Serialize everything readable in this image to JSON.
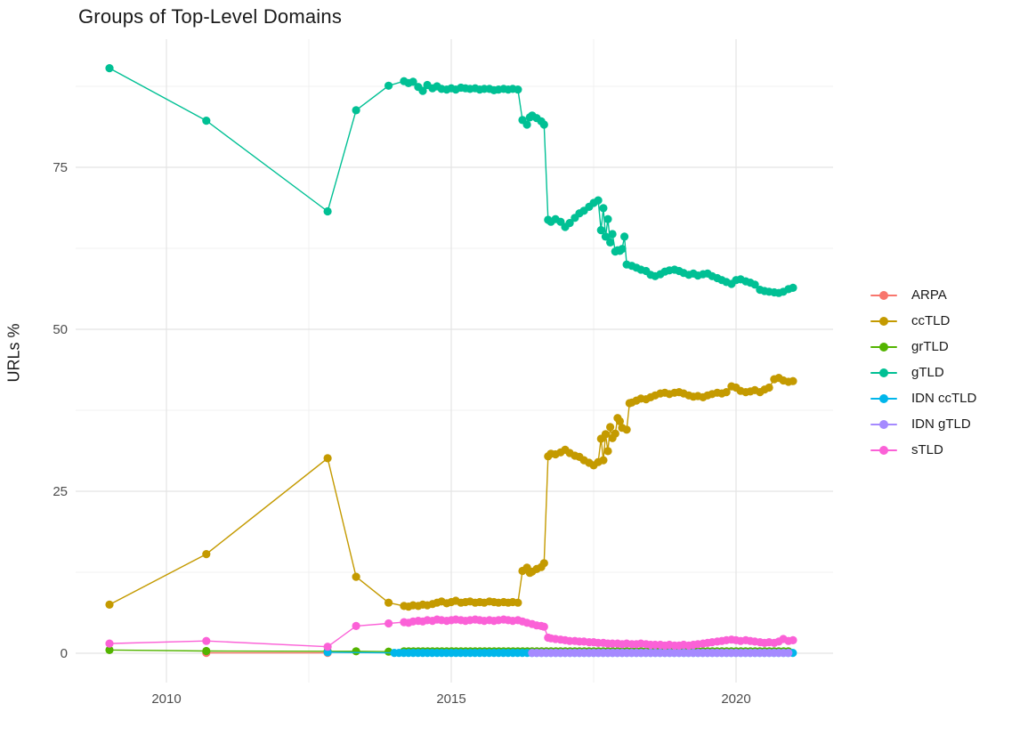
{
  "chart_data": {
    "type": "line",
    "title": "Groups of Top-Level Domains",
    "xlabel": "",
    "ylabel": "URLs %",
    "x_ticks": [
      2010,
      2015,
      2020
    ],
    "x_minor": [
      2012.5,
      2017.5
    ],
    "y_ticks": [
      0,
      25,
      50,
      75
    ],
    "y_minor": [
      12.5,
      37.5,
      62.5,
      87.5
    ],
    "xlim": [
      2008.4,
      2021.6
    ],
    "ylim": [
      -0.7,
      94.8
    ],
    "grid": "on",
    "legend_position": "right",
    "colors": {
      "major_grid": "#e4e4e4",
      "minor_grid": "#f0f0f0",
      "tick_text": "#4d4d4d",
      "text": "#1a1a1a",
      "background": "#ffffff"
    },
    "series": [
      {
        "name": "ARPA",
        "color": "#F8766D",
        "points": [
          [
            2010.7,
            0.05
          ],
          [
            2012.83,
            0.05
          ]
        ]
      },
      {
        "name": "ccTLD",
        "color": "#C49A00",
        "points": [
          [
            2009.0,
            7.5
          ],
          [
            2010.7,
            15.3
          ],
          [
            2012.83,
            30.1
          ],
          [
            2013.33,
            11.8
          ],
          [
            2013.9,
            7.8
          ],
          [
            2014.17,
            7.3
          ],
          [
            2014.25,
            7.2
          ],
          [
            2014.33,
            7.4
          ],
          [
            2014.42,
            7.3
          ],
          [
            2014.5,
            7.5
          ],
          [
            2014.58,
            7.4
          ],
          [
            2014.67,
            7.6
          ],
          [
            2014.75,
            7.8
          ],
          [
            2014.83,
            8.0
          ],
          [
            2014.92,
            7.7
          ],
          [
            2015.0,
            7.9
          ],
          [
            2015.08,
            8.1
          ],
          [
            2015.17,
            7.8
          ],
          [
            2015.25,
            7.9
          ],
          [
            2015.33,
            8.0
          ],
          [
            2015.42,
            7.8
          ],
          [
            2015.5,
            7.9
          ],
          [
            2015.58,
            7.8
          ],
          [
            2015.67,
            8.0
          ],
          [
            2015.75,
            7.9
          ],
          [
            2015.83,
            7.8
          ],
          [
            2015.92,
            7.9
          ],
          [
            2016.0,
            7.8
          ],
          [
            2016.08,
            7.9
          ],
          [
            2016.17,
            7.8
          ],
          [
            2016.25,
            12.7
          ],
          [
            2016.33,
            13.2
          ],
          [
            2016.38,
            12.4
          ],
          [
            2016.42,
            12.6
          ],
          [
            2016.5,
            13.0
          ],
          [
            2016.58,
            13.3
          ],
          [
            2016.63,
            13.9
          ],
          [
            2016.7,
            30.4
          ],
          [
            2016.75,
            30.8
          ],
          [
            2016.83,
            30.7
          ],
          [
            2016.92,
            31.0
          ],
          [
            2017.0,
            31.4
          ],
          [
            2017.08,
            30.9
          ],
          [
            2017.17,
            30.5
          ],
          [
            2017.25,
            30.3
          ],
          [
            2017.33,
            29.8
          ],
          [
            2017.42,
            29.4
          ],
          [
            2017.5,
            29.0
          ],
          [
            2017.58,
            29.5
          ],
          [
            2017.63,
            33.1
          ],
          [
            2017.67,
            29.8
          ],
          [
            2017.71,
            33.8
          ],
          [
            2017.75,
            31.2
          ],
          [
            2017.79,
            34.9
          ],
          [
            2017.83,
            33.2
          ],
          [
            2017.88,
            33.9
          ],
          [
            2017.92,
            36.3
          ],
          [
            2017.96,
            35.8
          ],
          [
            2018.0,
            34.8
          ],
          [
            2018.08,
            34.5
          ],
          [
            2018.13,
            38.6
          ],
          [
            2018.17,
            38.7
          ],
          [
            2018.25,
            39.0
          ],
          [
            2018.33,
            39.3
          ],
          [
            2018.42,
            39.2
          ],
          [
            2018.5,
            39.5
          ],
          [
            2018.58,
            39.8
          ],
          [
            2018.67,
            40.1
          ],
          [
            2018.75,
            40.2
          ],
          [
            2018.83,
            40.0
          ],
          [
            2018.92,
            40.2
          ],
          [
            2019.0,
            40.3
          ],
          [
            2019.08,
            40.1
          ],
          [
            2019.17,
            39.8
          ],
          [
            2019.25,
            39.6
          ],
          [
            2019.33,
            39.7
          ],
          [
            2019.42,
            39.5
          ],
          [
            2019.5,
            39.8
          ],
          [
            2019.58,
            40.0
          ],
          [
            2019.67,
            40.2
          ],
          [
            2019.75,
            40.1
          ],
          [
            2019.83,
            40.3
          ],
          [
            2019.92,
            41.2
          ],
          [
            2020.0,
            41.0
          ],
          [
            2020.08,
            40.5
          ],
          [
            2020.17,
            40.3
          ],
          [
            2020.25,
            40.4
          ],
          [
            2020.33,
            40.6
          ],
          [
            2020.42,
            40.3
          ],
          [
            2020.5,
            40.7
          ],
          [
            2020.58,
            41.0
          ],
          [
            2020.67,
            42.3
          ],
          [
            2020.75,
            42.5
          ],
          [
            2020.83,
            42.1
          ],
          [
            2020.92,
            41.9
          ],
          [
            2021.0,
            42.0
          ]
        ]
      },
      {
        "name": "grTLD",
        "color": "#53B400",
        "points": [
          [
            2009.0,
            0.5
          ],
          [
            2010.7,
            0.35
          ],
          [
            2012.83,
            0.3
          ],
          [
            2013.33,
            0.3
          ],
          [
            2013.9,
            0.25
          ]
        ],
        "spans": [
          {
            "from": 2014.17,
            "to": 2021.0,
            "step": 0.0833,
            "value": 0.3
          }
        ]
      },
      {
        "name": "gTLD",
        "color": "#00C094",
        "points": [
          [
            2009.0,
            90.3
          ],
          [
            2010.7,
            82.2
          ],
          [
            2012.83,
            68.2
          ],
          [
            2013.33,
            83.8
          ],
          [
            2013.9,
            87.6
          ],
          [
            2014.17,
            88.3
          ],
          [
            2014.25,
            88.0
          ],
          [
            2014.33,
            88.2
          ],
          [
            2014.42,
            87.4
          ],
          [
            2014.5,
            86.8
          ],
          [
            2014.58,
            87.7
          ],
          [
            2014.67,
            87.2
          ],
          [
            2014.75,
            87.5
          ],
          [
            2014.83,
            87.1
          ],
          [
            2014.92,
            87.0
          ],
          [
            2015.0,
            87.2
          ],
          [
            2015.08,
            87.0
          ],
          [
            2015.17,
            87.3
          ],
          [
            2015.25,
            87.2
          ],
          [
            2015.33,
            87.1
          ],
          [
            2015.42,
            87.2
          ],
          [
            2015.5,
            87.0
          ],
          [
            2015.58,
            87.1
          ],
          [
            2015.67,
            87.1
          ],
          [
            2015.75,
            86.9
          ],
          [
            2015.83,
            87.0
          ],
          [
            2015.92,
            87.1
          ],
          [
            2016.0,
            87.0
          ],
          [
            2016.08,
            87.1
          ],
          [
            2016.17,
            87.0
          ],
          [
            2016.25,
            82.3
          ],
          [
            2016.33,
            81.6
          ],
          [
            2016.38,
            82.7
          ],
          [
            2016.42,
            83.0
          ],
          [
            2016.5,
            82.6
          ],
          [
            2016.58,
            82.1
          ],
          [
            2016.63,
            81.6
          ],
          [
            2016.7,
            66.9
          ],
          [
            2016.75,
            66.6
          ],
          [
            2016.83,
            67.0
          ],
          [
            2016.92,
            66.6
          ],
          [
            2017.0,
            65.8
          ],
          [
            2017.08,
            66.4
          ],
          [
            2017.17,
            67.2
          ],
          [
            2017.25,
            67.9
          ],
          [
            2017.33,
            68.3
          ],
          [
            2017.42,
            68.9
          ],
          [
            2017.5,
            69.5
          ],
          [
            2017.58,
            69.9
          ],
          [
            2017.63,
            65.3
          ],
          [
            2017.67,
            68.7
          ],
          [
            2017.71,
            64.3
          ],
          [
            2017.75,
            67.0
          ],
          [
            2017.79,
            63.4
          ],
          [
            2017.83,
            64.7
          ],
          [
            2017.88,
            62.0
          ],
          [
            2017.92,
            62.2
          ],
          [
            2017.96,
            62.1
          ],
          [
            2018.0,
            62.4
          ],
          [
            2018.04,
            64.3
          ],
          [
            2018.08,
            60.0
          ],
          [
            2018.17,
            59.8
          ],
          [
            2018.25,
            59.5
          ],
          [
            2018.33,
            59.2
          ],
          [
            2018.42,
            59.0
          ],
          [
            2018.5,
            58.4
          ],
          [
            2018.58,
            58.2
          ],
          [
            2018.67,
            58.5
          ],
          [
            2018.75,
            58.9
          ],
          [
            2018.83,
            59.1
          ],
          [
            2018.92,
            59.2
          ],
          [
            2019.0,
            59.0
          ],
          [
            2019.08,
            58.7
          ],
          [
            2019.17,
            58.4
          ],
          [
            2019.25,
            58.6
          ],
          [
            2019.33,
            58.3
          ],
          [
            2019.42,
            58.5
          ],
          [
            2019.5,
            58.6
          ],
          [
            2019.58,
            58.2
          ],
          [
            2019.67,
            57.9
          ],
          [
            2019.75,
            57.6
          ],
          [
            2019.83,
            57.3
          ],
          [
            2019.92,
            57.0
          ],
          [
            2020.0,
            57.6
          ],
          [
            2020.08,
            57.7
          ],
          [
            2020.17,
            57.4
          ],
          [
            2020.25,
            57.2
          ],
          [
            2020.33,
            56.9
          ],
          [
            2020.42,
            56.1
          ],
          [
            2020.5,
            55.9
          ],
          [
            2020.58,
            55.8
          ],
          [
            2020.67,
            55.7
          ],
          [
            2020.75,
            55.6
          ],
          [
            2020.83,
            55.8
          ],
          [
            2020.92,
            56.2
          ],
          [
            2021.0,
            56.4
          ]
        ]
      },
      {
        "name": "IDN ccTLD",
        "color": "#00B6EB",
        "points": [
          [
            2012.83,
            0.15
          ]
        ],
        "spans": [
          {
            "from": 2014.0,
            "to": 2021.0,
            "step": 0.0833,
            "value": 0.05
          }
        ]
      },
      {
        "name": "IDN gTLD",
        "color": "#A58AFF",
        "spans": [
          {
            "from": 2016.42,
            "to": 2021.0,
            "step": 0.0833,
            "value": 0.05
          }
        ]
      },
      {
        "name": "sTLD",
        "color": "#FB61D7",
        "points": [
          [
            2009.0,
            1.5
          ],
          [
            2010.7,
            1.9
          ],
          [
            2012.83,
            1.0
          ],
          [
            2013.33,
            4.2
          ],
          [
            2013.9,
            4.6
          ],
          [
            2014.17,
            4.8
          ],
          [
            2014.25,
            4.7
          ],
          [
            2014.33,
            4.9
          ],
          [
            2014.42,
            5.0
          ],
          [
            2014.5,
            4.9
          ],
          [
            2014.58,
            5.1
          ],
          [
            2014.67,
            5.0
          ],
          [
            2014.75,
            5.2
          ],
          [
            2014.83,
            5.1
          ],
          [
            2014.92,
            5.0
          ],
          [
            2015.0,
            5.1
          ],
          [
            2015.08,
            5.2
          ],
          [
            2015.17,
            5.1
          ],
          [
            2015.25,
            5.0
          ],
          [
            2015.33,
            5.1
          ],
          [
            2015.42,
            5.2
          ],
          [
            2015.5,
            5.1
          ],
          [
            2015.58,
            5.0
          ],
          [
            2015.67,
            5.1
          ],
          [
            2015.75,
            5.0
          ],
          [
            2015.83,
            5.1
          ],
          [
            2015.92,
            5.2
          ],
          [
            2016.0,
            5.1
          ],
          [
            2016.08,
            5.0
          ],
          [
            2016.17,
            5.1
          ],
          [
            2016.25,
            4.9
          ],
          [
            2016.33,
            4.7
          ],
          [
            2016.42,
            4.5
          ],
          [
            2016.5,
            4.3
          ],
          [
            2016.58,
            4.2
          ],
          [
            2016.63,
            4.1
          ],
          [
            2016.7,
            2.4
          ],
          [
            2016.75,
            2.3
          ],
          [
            2016.83,
            2.2
          ],
          [
            2016.92,
            2.1
          ],
          [
            2017.0,
            2.0
          ],
          [
            2017.08,
            1.9
          ],
          [
            2017.17,
            1.9
          ],
          [
            2017.25,
            1.8
          ],
          [
            2017.33,
            1.8
          ],
          [
            2017.42,
            1.7
          ],
          [
            2017.5,
            1.7
          ],
          [
            2017.58,
            1.6
          ],
          [
            2017.67,
            1.6
          ],
          [
            2017.75,
            1.5
          ],
          [
            2017.83,
            1.5
          ],
          [
            2017.92,
            1.5
          ],
          [
            2018.0,
            1.4
          ],
          [
            2018.08,
            1.5
          ],
          [
            2018.17,
            1.4
          ],
          [
            2018.25,
            1.4
          ],
          [
            2018.33,
            1.5
          ],
          [
            2018.42,
            1.4
          ],
          [
            2018.5,
            1.3
          ],
          [
            2018.58,
            1.3
          ],
          [
            2018.67,
            1.3
          ],
          [
            2018.75,
            1.2
          ],
          [
            2018.83,
            1.3
          ],
          [
            2018.92,
            1.2
          ],
          [
            2019.0,
            1.2
          ],
          [
            2019.08,
            1.3
          ],
          [
            2019.17,
            1.2
          ],
          [
            2019.25,
            1.3
          ],
          [
            2019.33,
            1.4
          ],
          [
            2019.42,
            1.5
          ],
          [
            2019.5,
            1.6
          ],
          [
            2019.58,
            1.7
          ],
          [
            2019.67,
            1.8
          ],
          [
            2019.75,
            1.9
          ],
          [
            2019.83,
            2.0
          ],
          [
            2019.92,
            2.1
          ],
          [
            2020.0,
            2.0
          ],
          [
            2020.08,
            1.9
          ],
          [
            2020.17,
            2.0
          ],
          [
            2020.25,
            1.9
          ],
          [
            2020.33,
            1.8
          ],
          [
            2020.42,
            1.7
          ],
          [
            2020.5,
            1.6
          ],
          [
            2020.58,
            1.7
          ],
          [
            2020.67,
            1.6
          ],
          [
            2020.75,
            1.8
          ],
          [
            2020.83,
            2.2
          ],
          [
            2020.92,
            1.9
          ],
          [
            2021.0,
            2.0
          ]
        ]
      }
    ]
  }
}
